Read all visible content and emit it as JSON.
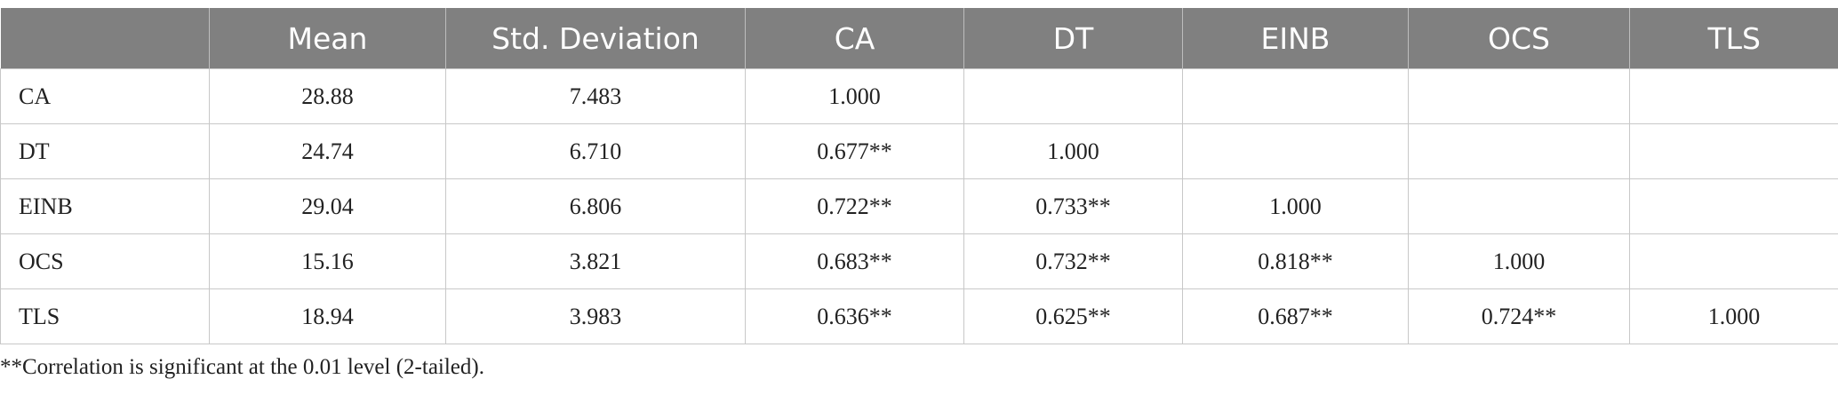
{
  "table": {
    "header": [
      "Mean",
      "Std. Deviation",
      "CA",
      "DT",
      "EINB",
      "OCS",
      "TLS"
    ],
    "rows": [
      [
        "CA",
        "28.88",
        "7.483",
        "1.000"
      ],
      [
        "DT",
        "24.74",
        "6.710",
        "0.677**",
        "1.000"
      ],
      [
        "EINB",
        "29.04",
        "6.806",
        "0.722**",
        "0.733**",
        "1.000"
      ],
      [
        "OCS",
        "15.16",
        "3.821",
        "0.683**",
        "0.732**",
        "0.818**",
        "1.000"
      ],
      [
        "TLS",
        "18.94",
        "3.983",
        "0.636**",
        "0.625**",
        "0.687**",
        "0.724**",
        "1.000"
      ]
    ]
  },
  "footnote": "**Correlation is significant at the 0.01 level (2-tailed)."
}
